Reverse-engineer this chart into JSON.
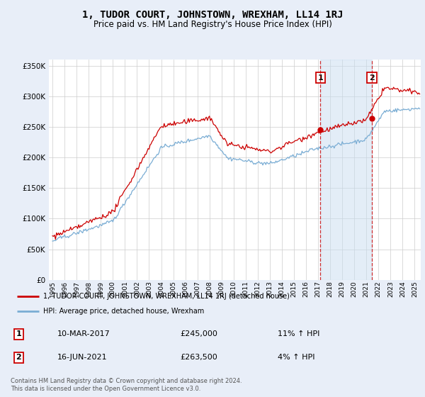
{
  "title": "1, TUDOR COURT, JOHNSTOWN, WREXHAM, LL14 1RJ",
  "subtitle": "Price paid vs. HM Land Registry's House Price Index (HPI)",
  "legend_line1": "1, TUDOR COURT, JOHNSTOWN, WREXHAM, LL14 1RJ (detached house)",
  "legend_line2": "HPI: Average price, detached house, Wrexham",
  "footer": "Contains HM Land Registry data © Crown copyright and database right 2024.\nThis data is licensed under the Open Government Licence v3.0.",
  "sale1_label": "1",
  "sale1_date": "10-MAR-2017",
  "sale1_price": "£245,000",
  "sale1_hpi": "11% ↑ HPI",
  "sale2_label": "2",
  "sale2_date": "16-JUN-2021",
  "sale2_price": "£263,500",
  "sale2_hpi": "4% ↑ HPI",
  "hpi_color": "#7aadd4",
  "price_color": "#cc0000",
  "marker1_x": 2017.19,
  "marker2_x": 2021.46,
  "marker1_y": 245000,
  "marker2_y": 263500,
  "x_start": 1994.7,
  "x_end": 2025.5,
  "ylim_top": 360000,
  "y_ticks": [
    0,
    50000,
    100000,
    150000,
    200000,
    250000,
    300000,
    350000
  ],
  "x_ticks": [
    1995,
    1996,
    1997,
    1998,
    1999,
    2000,
    2001,
    2002,
    2003,
    2004,
    2005,
    2006,
    2007,
    2008,
    2009,
    2010,
    2011,
    2012,
    2013,
    2014,
    2015,
    2016,
    2017,
    2018,
    2019,
    2020,
    2021,
    2022,
    2023,
    2024,
    2025
  ],
  "background_color": "#e8eef8",
  "plot_bg": "#ffffff",
  "shade_color": "#c8ddf0",
  "shade_alpha": 0.5
}
